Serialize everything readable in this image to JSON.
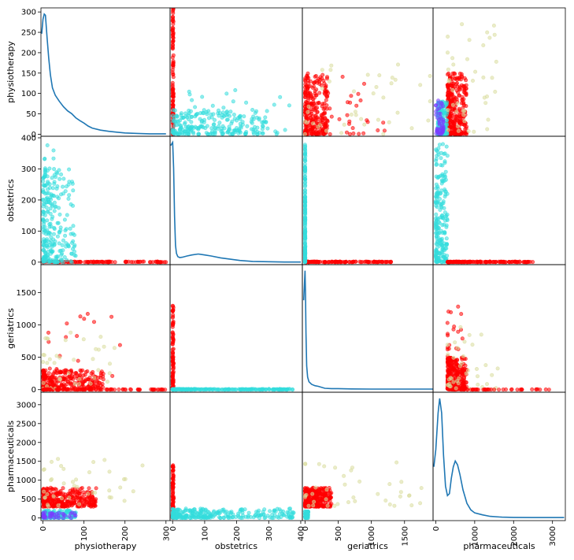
{
  "chart_data": {
    "type": "scatter-matrix",
    "variables": [
      "physiotherapy",
      "obstetrics",
      "geriatrics",
      "pharmaceuticals"
    ],
    "colors": {
      "red": "#ff0000",
      "cyan": "#33dddd",
      "beige": "#d8dc9c",
      "purple": "#7a3cff",
      "kde_line": "#1f77b4"
    },
    "ranges": {
      "physiotherapy": [
        -5,
        310
      ],
      "obstetrics": [
        -8,
        405
      ],
      "geriatrics": [
        -40,
        1930
      ],
      "pharmaceuticals": [
        -70,
        3330
      ]
    },
    "x_ticks": {
      "physiotherapy": [
        0,
        100,
        200,
        300
      ],
      "obstetrics": [
        0,
        100,
        200,
        300,
        400
      ],
      "geriatrics": [
        0,
        500,
        1000,
        1500
      ],
      "pharmaceuticals": [
        0,
        1000,
        2000,
        3000
      ]
    },
    "y_ticks": {
      "physiotherapy": [
        0,
        50,
        100,
        150,
        200,
        250,
        300
      ],
      "obstetrics": [
        0,
        100,
        200,
        300,
        400
      ],
      "geriatrics": [
        0,
        500,
        1000,
        1500
      ],
      "pharmaceuticals": [
        0,
        500,
        1000,
        1500,
        2000,
        2500,
        3000
      ]
    },
    "tick_label_text": {
      "physiotherapy": [
        "0",
        "100",
        "200",
        "300"
      ],
      "obstetrics": [
        "0",
        "100",
        "200",
        "300",
        "400"
      ],
      "geriatrics": [
        "0",
        "500",
        "1000",
        "1500"
      ],
      "pharmaceuticals": [
        "0",
        "1000",
        "2000",
        "3000"
      ]
    },
    "y_tick_label_text": {
      "physiotherapy": [
        "0",
        "50",
        "100",
        "150",
        "200",
        "250",
        "300"
      ],
      "obstetrics": [
        "0",
        "100",
        "200",
        "300",
        "400"
      ],
      "geriatrics": [
        "0",
        "500",
        "1000",
        "1500"
      ],
      "pharmaceuticals": [
        "0",
        "500",
        "1000",
        "1500",
        "2000",
        "2500",
        "3000"
      ]
    },
    "kde": {
      "physiotherapy": [
        [
          -3,
          250
        ],
        [
          0,
          285
        ],
        [
          3,
          298
        ],
        [
          6,
          295
        ],
        [
          10,
          240
        ],
        [
          14,
          190
        ],
        [
          18,
          150
        ],
        [
          23,
          118
        ],
        [
          30,
          100
        ],
        [
          40,
          85
        ],
        [
          50,
          72
        ],
        [
          60,
          62
        ],
        [
          70,
          55
        ],
        [
          80,
          45
        ],
        [
          90,
          38
        ],
        [
          100,
          32
        ],
        [
          110,
          25
        ],
        [
          120,
          20
        ],
        [
          140,
          15
        ],
        [
          160,
          12
        ],
        [
          180,
          10
        ],
        [
          200,
          8
        ],
        [
          230,
          7
        ],
        [
          260,
          6
        ],
        [
          300,
          6
        ]
      ],
      "obstetrics": [
        [
          -6,
          370
        ],
        [
          0,
          380
        ],
        [
          3,
          300
        ],
        [
          6,
          150
        ],
        [
          9,
          60
        ],
        [
          12,
          35
        ],
        [
          16,
          25
        ],
        [
          22,
          22
        ],
        [
          30,
          23
        ],
        [
          45,
          27
        ],
        [
          60,
          30
        ],
        [
          80,
          33
        ],
        [
          100,
          30
        ],
        [
          120,
          27
        ],
        [
          150,
          21
        ],
        [
          180,
          17
        ],
        [
          210,
          13
        ],
        [
          250,
          10
        ],
        [
          300,
          9
        ],
        [
          350,
          8
        ],
        [
          400,
          8
        ]
      ],
      "geriatrics": [
        [
          -20,
          1400
        ],
        [
          0,
          1850
        ],
        [
          8,
          1500
        ],
        [
          15,
          900
        ],
        [
          25,
          400
        ],
        [
          40,
          230
        ],
        [
          60,
          160
        ],
        [
          100,
          120
        ],
        [
          150,
          100
        ],
        [
          200,
          90
        ],
        [
          300,
          60
        ],
        [
          400,
          55
        ],
        [
          500,
          55
        ],
        [
          700,
          50
        ],
        [
          1000,
          48
        ],
        [
          1400,
          48
        ],
        [
          1930,
          48
        ]
      ],
      "pharmaceuticals": [
        [
          -50,
          1400
        ],
        [
          0,
          1850
        ],
        [
          60,
          2800
        ],
        [
          100,
          3180
        ],
        [
          150,
          2800
        ],
        [
          200,
          1700
        ],
        [
          250,
          900
        ],
        [
          300,
          650
        ],
        [
          350,
          700
        ],
        [
          400,
          1100
        ],
        [
          450,
          1400
        ],
        [
          500,
          1550
        ],
        [
          560,
          1450
        ],
        [
          620,
          1200
        ],
        [
          700,
          800
        ],
        [
          800,
          450
        ],
        [
          900,
          280
        ],
        [
          1000,
          200
        ],
        [
          1200,
          150
        ],
        [
          1400,
          110
        ],
        [
          1700,
          90
        ],
        [
          2000,
          85
        ],
        [
          2500,
          80
        ],
        [
          3000,
          80
        ],
        [
          3300,
          80
        ]
      ]
    },
    "scatter_groups": {
      "physiotherapy_obstetrics": [
        {
          "group": "red",
          "x_range": [
            0,
            300
          ],
          "y_range": [
            0,
            2
          ],
          "n": 120
        },
        {
          "group": "cyan",
          "x_range": [
            0,
            80
          ],
          "y_range": [
            0,
            300
          ],
          "n": 220
        },
        {
          "group": "cyan",
          "x_range": [
            0,
            30
          ],
          "y_range": [
            0,
            380
          ],
          "n": 40
        }
      ],
      "physiotherapy_geriatrics": [
        {
          "group": "red",
          "x_range": [
            0,
            150
          ],
          "y_range": [
            0,
            300
          ],
          "n": 280
        },
        {
          "group": "red",
          "x_range": [
            0,
            200
          ],
          "y_range": [
            200,
            1300
          ],
          "n": 25
        },
        {
          "group": "beige",
          "x_range": [
            0,
            180
          ],
          "y_range": [
            0,
            900
          ],
          "n": 40
        },
        {
          "group": "red",
          "x_range": [
            0,
            300
          ],
          "y_range": [
            0,
            5
          ],
          "n": 80
        }
      ],
      "physiotherapy_pharmaceuticals": [
        {
          "group": "red",
          "x_range": [
            0,
            130
          ],
          "y_range": [
            300,
            800
          ],
          "n": 320
        },
        {
          "group": "cyan",
          "x_range": [
            0,
            80
          ],
          "y_range": [
            0,
            200
          ],
          "n": 150
        },
        {
          "group": "purple",
          "x_range": [
            0,
            80
          ],
          "y_range": [
            0,
            150
          ],
          "n": 40
        },
        {
          "group": "beige",
          "x_range": [
            0,
            250
          ],
          "y_range": [
            300,
            1600
          ],
          "n": 40
        }
      ],
      "obstetrics_physiotherapy": [
        {
          "group": "red",
          "x_range": [
            0,
            3
          ],
          "y_range": [
            0,
            310
          ],
          "n": 120
        },
        {
          "group": "cyan",
          "x_range": [
            0,
            300
          ],
          "y_range": [
            0,
            60
          ],
          "n": 220
        },
        {
          "group": "cyan",
          "x_range": [
            50,
            380
          ],
          "y_range": [
            0,
            120
          ],
          "n": 40
        }
      ],
      "obstetrics_geriatrics": [
        {
          "group": "red",
          "x_range": [
            0,
            3
          ],
          "y_range": [
            0,
            1300
          ],
          "n": 100
        },
        {
          "group": "cyan",
          "x_range": [
            0,
            380
          ],
          "y_range": [
            0,
            10
          ],
          "n": 220
        }
      ],
      "obstetrics_pharmaceuticals": [
        {
          "group": "red",
          "x_range": [
            0,
            3
          ],
          "y_range": [
            0,
            1400
          ],
          "n": 100
        },
        {
          "group": "cyan",
          "x_range": [
            0,
            380
          ],
          "y_range": [
            0,
            250
          ],
          "n": 260
        }
      ],
      "geriatrics_physiotherapy": [
        {
          "group": "red",
          "x_range": [
            0,
            350
          ],
          "y_range": [
            0,
            150
          ],
          "n": 280
        },
        {
          "group": "red",
          "x_range": [
            0,
            1200
          ],
          "y_range": [
            0,
            150
          ],
          "n": 40
        },
        {
          "group": "beige",
          "x_range": [
            0,
            1900
          ],
          "y_range": [
            0,
            200
          ],
          "n": 40
        }
      ],
      "geriatrics_obstetrics": [
        {
          "group": "red",
          "x_range": [
            0,
            1300
          ],
          "y_range": [
            0,
            2
          ],
          "n": 120
        },
        {
          "group": "cyan",
          "x_range": [
            0,
            5
          ],
          "y_range": [
            0,
            380
          ],
          "n": 150
        }
      ],
      "geriatrics_pharmaceuticals": [
        {
          "group": "red",
          "x_range": [
            0,
            400
          ],
          "y_range": [
            300,
            800
          ],
          "n": 300
        },
        {
          "group": "beige",
          "x_range": [
            0,
            1800
          ],
          "y_range": [
            300,
            1600
          ],
          "n": 40
        },
        {
          "group": "cyan",
          "x_range": [
            0,
            50
          ],
          "y_range": [
            0,
            200
          ],
          "n": 60
        }
      ],
      "pharmaceuticals_physiotherapy": [
        {
          "group": "red",
          "x_range": [
            300,
            800
          ],
          "y_range": [
            0,
            150
          ],
          "n": 320
        },
        {
          "group": "cyan",
          "x_range": [
            50,
            300
          ],
          "y_range": [
            0,
            80
          ],
          "n": 150
        },
        {
          "group": "purple",
          "x_range": [
            0,
            200
          ],
          "y_range": [
            0,
            90
          ],
          "n": 50
        },
        {
          "group": "beige",
          "x_range": [
            300,
            1600
          ],
          "y_range": [
            0,
            280
          ],
          "n": 40
        }
      ],
      "pharmaceuticals_obstetrics": [
        {
          "group": "cyan",
          "x_range": [
            0,
            300
          ],
          "y_range": [
            0,
            380
          ],
          "n": 220
        },
        {
          "group": "red",
          "x_range": [
            300,
            2500
          ],
          "y_range": [
            0,
            2
          ],
          "n": 140
        }
      ],
      "pharmaceuticals_geriatrics": [
        {
          "group": "red",
          "x_range": [
            300,
            800
          ],
          "y_range": [
            0,
            500
          ],
          "n": 300
        },
        {
          "group": "red",
          "x_range": [
            300,
            800
          ],
          "y_range": [
            300,
            1300
          ],
          "n": 30
        },
        {
          "group": "beige",
          "x_range": [
            300,
            1600
          ],
          "y_range": [
            0,
            1000
          ],
          "n": 40
        },
        {
          "group": "red",
          "x_range": [
            700,
            3300
          ],
          "y_range": [
            0,
            5
          ],
          "n": 40
        }
      ]
    }
  }
}
